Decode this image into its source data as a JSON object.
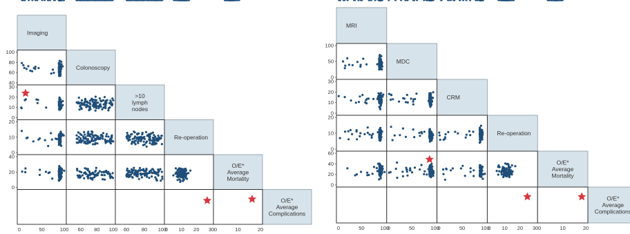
{
  "chart_data": [
    {
      "type": "scatter",
      "panel": "left",
      "variables": [
        {
          "name": "Imaging",
          "ticks": [
            0,
            50,
            100
          ],
          "range": [
            0,
            100
          ],
          "yticks": [
            40,
            60,
            80,
            100
          ]
        },
        {
          "name": "Colonoscopy",
          "ticks": [
            60,
            80,
            100
          ],
          "range": [
            45,
            100
          ],
          "yticks": [
            40,
            60,
            80,
            100
          ]
        },
        {
          "name": ">10\nlymph\nnodes",
          "ticks": [
            60,
            80,
            100
          ],
          "range": [
            50,
            100
          ],
          "yticks": [
            0,
            10,
            20,
            30
          ]
        },
        {
          "name": "Re-operation",
          "ticks": [
            0,
            10,
            20,
            30
          ],
          "range": [
            0,
            30
          ],
          "yticks": [
            0,
            10,
            20
          ]
        },
        {
          "name": "O/E*\nAverage\nMortality",
          "ticks": [
            0,
            10,
            20
          ],
          "range": [
            0,
            20
          ],
          "yticks": [
            0,
            20,
            40
          ]
        },
        {
          "name": "O/E*\nAverage\nComplications",
          "ticks": [],
          "range": [
            0,
            45
          ],
          "yticks": []
        }
      ],
      "highlight_marker": "star",
      "highlight_color": "#d8373f",
      "point_color": "#1f4e79"
    },
    {
      "type": "scatter",
      "panel": "right",
      "variables": [
        {
          "name": "MRI",
          "ticks": [
            0,
            50,
            100
          ],
          "range": [
            0,
            100
          ],
          "yticks": [
            0,
            50,
            100
          ]
        },
        {
          "name": "MDC",
          "ticks": [
            0,
            50,
            100
          ],
          "range": [
            0,
            100
          ],
          "yticks": [
            0,
            50,
            100
          ]
        },
        {
          "name": "CRM",
          "ticks": [
            0,
            50,
            100
          ],
          "range": [
            0,
            100
          ],
          "yticks": [
            0,
            10,
            20,
            30
          ]
        },
        {
          "name": "Re-operation",
          "ticks": [
            0,
            10,
            20,
            30
          ],
          "range": [
            0,
            30
          ],
          "yticks": [
            0,
            10,
            20
          ]
        },
        {
          "name": "O/E*\nAverage\nMortality",
          "ticks": [
            0,
            10,
            20
          ],
          "range": [
            0,
            20
          ],
          "yticks": [
            0,
            20,
            40,
            60
          ]
        },
        {
          "name": "O/E*\nAverage\nComplications",
          "ticks": [],
          "range": [
            0,
            60
          ],
          "yticks": []
        }
      ],
      "highlight_marker": "star",
      "highlight_color": "#d8373f",
      "point_color": "#1f4e79"
    }
  ]
}
